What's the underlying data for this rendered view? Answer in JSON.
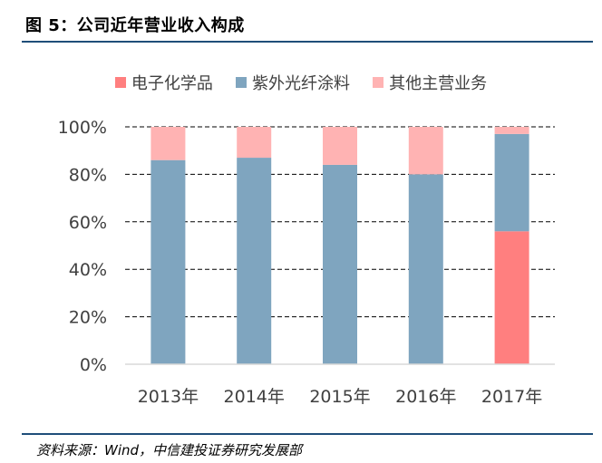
{
  "figure": {
    "title": "图 5：公司近年营业收入构成",
    "source": "资料来源：Wind，中信建投证券研究发展部"
  },
  "chart_data": {
    "type": "bar",
    "stacked": true,
    "categories": [
      "2013年",
      "2014年",
      "2015年",
      "2016年",
      "2017年"
    ],
    "series": [
      {
        "name": "电子化学品",
        "color": "#ff7f7f",
        "values": [
          0,
          0,
          0,
          0,
          56
        ]
      },
      {
        "name": "紫外光纤涂料",
        "color": "#7fa5bf",
        "values": [
          86,
          87,
          84,
          80,
          41
        ]
      },
      {
        "name": "其他主营业务",
        "color": "#ffb3b3",
        "values": [
          14,
          13,
          16,
          20,
          3
        ]
      }
    ],
    "ylim": [
      0,
      100
    ],
    "yticks": [
      "0%",
      "20%",
      "40%",
      "60%",
      "80%",
      "100%"
    ],
    "grid": true,
    "legend": "top",
    "xlabel": "",
    "ylabel": ""
  }
}
